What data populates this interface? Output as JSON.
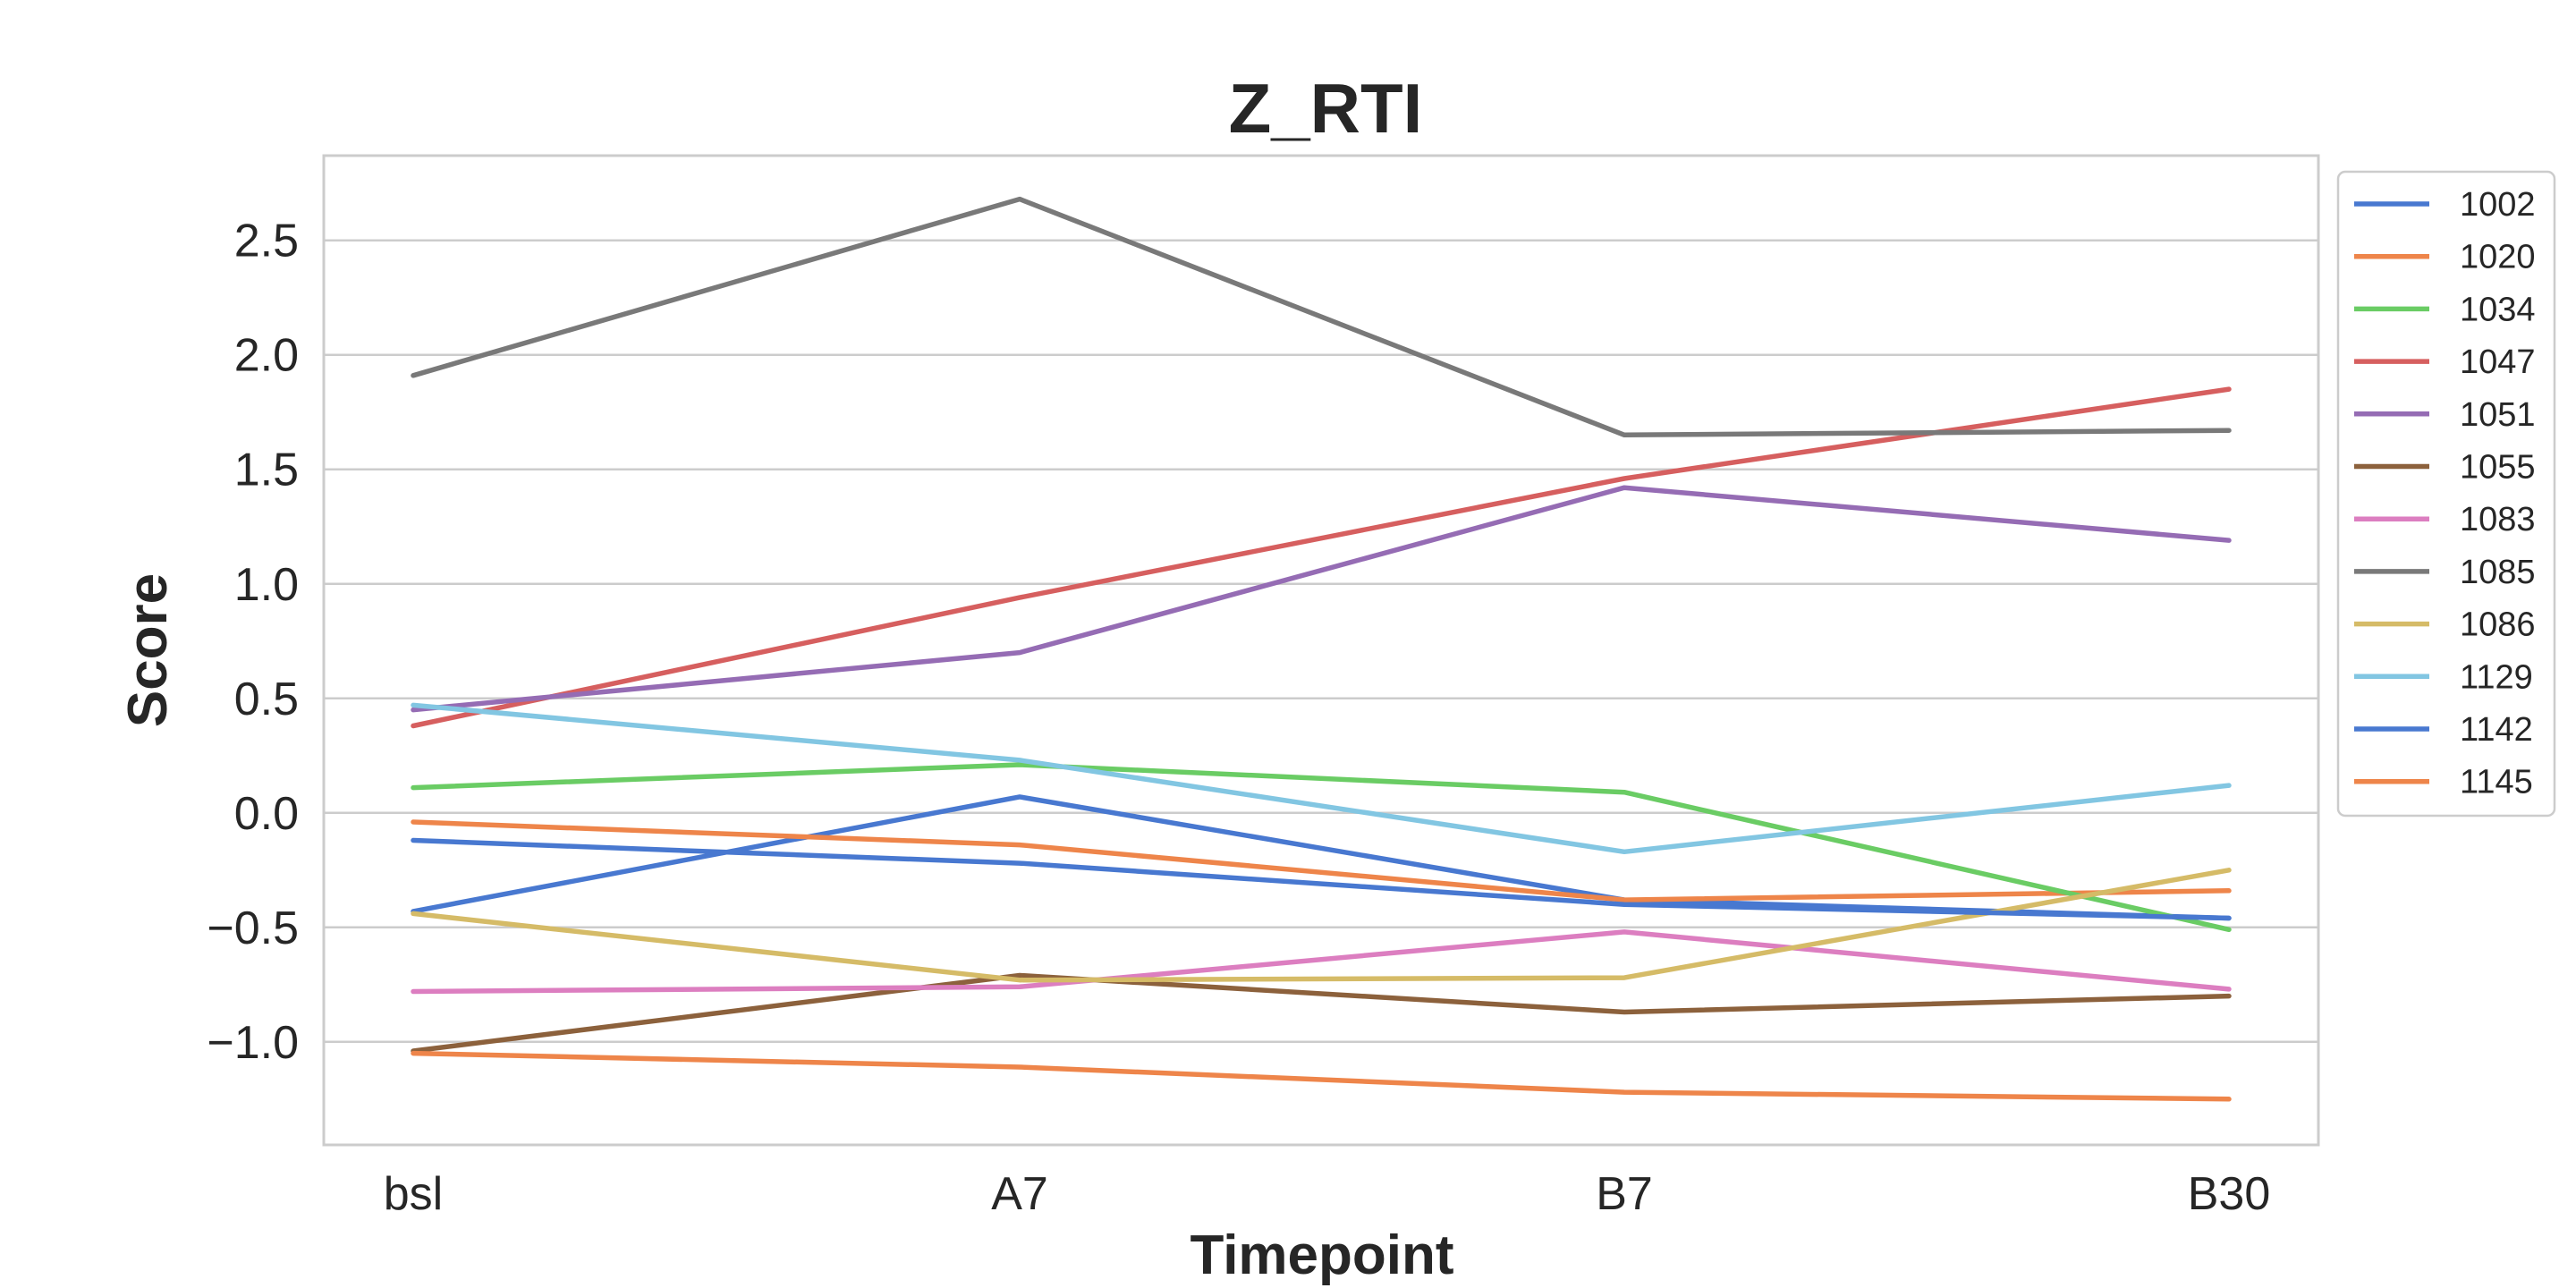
{
  "chart_data": {
    "type": "line",
    "title": "Z_RTI",
    "xlabel": "Timepoint",
    "ylabel": "Score",
    "categories": [
      "bsl",
      "A7",
      "B7",
      "B30"
    ],
    "ylim": [
      -1.45,
      2.87
    ],
    "yticks": [
      -1.0,
      -0.5,
      0.0,
      0.5,
      1.0,
      1.5,
      2.0,
      2.5
    ],
    "ytick_labels": [
      "−1.0",
      "−0.5",
      "0.0",
      "0.5",
      "1.0",
      "1.5",
      "2.0",
      "2.5"
    ],
    "grid": "horizontal",
    "legend_placement": "outside-right",
    "series": [
      {
        "name": "1002",
        "color": "#4878d0",
        "values": [
          -0.43,
          0.07,
          -0.38,
          -0.46
        ]
      },
      {
        "name": "1020",
        "color": "#ee854a",
        "values": [
          -0.04,
          -0.14,
          -0.38,
          -0.34
        ]
      },
      {
        "name": "1034",
        "color": "#6acc64",
        "values": [
          0.11,
          0.21,
          0.09,
          -0.51
        ]
      },
      {
        "name": "1047",
        "color": "#d65f5f",
        "values": [
          0.38,
          0.94,
          1.46,
          1.85
        ]
      },
      {
        "name": "1051",
        "color": "#956cb4",
        "values": [
          0.45,
          0.7,
          1.42,
          1.19
        ]
      },
      {
        "name": "1055",
        "color": "#8c613c",
        "values": [
          -1.04,
          -0.71,
          -0.87,
          -0.8
        ]
      },
      {
        "name": "1083",
        "color": "#dc7ec0",
        "values": [
          -0.78,
          -0.76,
          -0.52,
          -0.77
        ]
      },
      {
        "name": "1085",
        "color": "#797979",
        "values": [
          1.91,
          2.68,
          1.65,
          1.67
        ]
      },
      {
        "name": "1086",
        "color": "#d5bb67",
        "values": [
          -0.44,
          -0.73,
          -0.72,
          -0.25
        ]
      },
      {
        "name": "1129",
        "color": "#82c6e2",
        "values": [
          0.47,
          0.23,
          -0.17,
          0.12
        ]
      },
      {
        "name": "1142",
        "color": "#4878d0",
        "values": [
          -0.12,
          -0.22,
          -0.4,
          -0.46
        ]
      },
      {
        "name": "1145",
        "color": "#ee854a",
        "values": [
          -1.05,
          -1.11,
          -1.22,
          -1.25
        ]
      }
    ]
  }
}
